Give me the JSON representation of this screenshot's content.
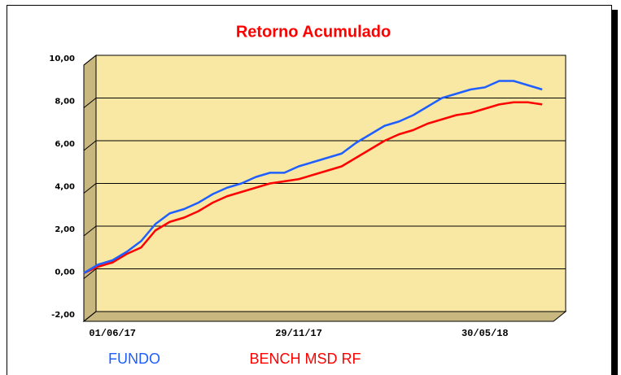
{
  "chart_data": {
    "type": "line",
    "title": "Retorno Acumulado",
    "categories": [
      null,
      null,
      "01/06/17",
      null,
      null,
      null,
      null,
      null,
      null,
      null,
      null,
      null,
      null,
      null,
      null,
      "29/11/17",
      null,
      null,
      null,
      null,
      null,
      null,
      null,
      null,
      null,
      null,
      null,
      null,
      "30/05/18",
      null,
      null,
      null,
      null
    ],
    "series": [
      {
        "name": "FUNDO",
        "color": "#1f5fff",
        "values": [
          -0.2,
          0.2,
          0.4,
          0.8,
          1.3,
          2.1,
          2.6,
          2.8,
          3.1,
          3.5,
          3.8,
          4.0,
          4.3,
          4.5,
          4.5,
          4.8,
          5.0,
          5.2,
          5.4,
          5.9,
          6.3,
          6.7,
          6.9,
          7.2,
          7.6,
          8.0,
          8.2,
          8.4,
          8.5,
          8.8,
          8.8,
          8.6,
          8.4
        ]
      },
      {
        "name": "BENCH MSD RF",
        "color": "#ff0000",
        "values": [
          -0.2,
          0.1,
          0.3,
          0.7,
          1.0,
          1.8,
          2.2,
          2.4,
          2.7,
          3.1,
          3.4,
          3.6,
          3.8,
          4.0,
          4.1,
          4.2,
          4.4,
          4.6,
          4.8,
          5.2,
          5.6,
          6.0,
          6.3,
          6.5,
          6.8,
          7.0,
          7.2,
          7.3,
          7.5,
          7.7,
          7.8,
          7.8,
          7.7
        ]
      }
    ],
    "ylim": [
      -2,
      10
    ],
    "yticks": [
      {
        "value": -2,
        "label": "-2,00"
      },
      {
        "value": 0,
        "label": "0,00"
      },
      {
        "value": 2,
        "label": "2,00"
      },
      {
        "value": 4,
        "label": "4,00"
      },
      {
        "value": 6,
        "label": "6,00"
      },
      {
        "value": 8,
        "label": "8,00"
      },
      {
        "value": 10,
        "label": "10,00"
      }
    ],
    "grid": true
  }
}
